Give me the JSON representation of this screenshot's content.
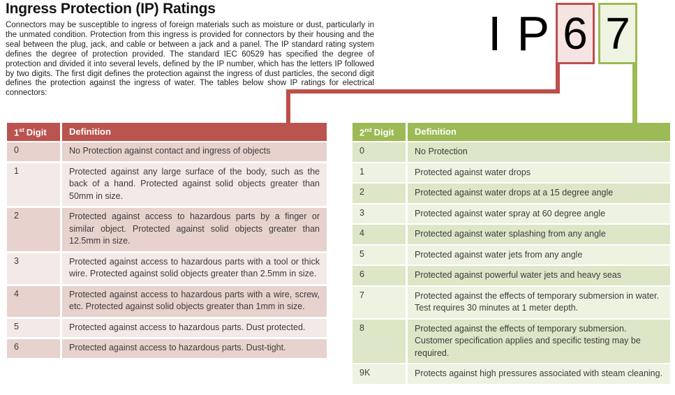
{
  "page": {
    "title": "Ingress Protection (IP) Ratings",
    "intro": "Connectors may be susceptible to ingress of foreign materials such as moisture or dust, particularly in the unmated condition. Protection from this ingress is provided for connectors by their housing and the seal between the plug, jack, and cable or between a jack and a panel. The IP standard rating system defines the degree of protection provided. The standard IEC 60529 has specified the degree of protection and divided it into several levels, defined by the IP number, which has the letters IP followed by two digits. The first digit defines the protection against the ingress of dust particles, the second digit defines the protection against the ingress of water. The tables below show IP ratings for electrical connectors:"
  },
  "ip_graphic": {
    "letters": "IP",
    "first_digit": "6",
    "second_digit": "7"
  },
  "colors": {
    "red_accent": "#bb534f",
    "red_row_dark": "#e7d2ce",
    "red_row_light": "#f3e9e6",
    "red_box_fill": "#f6e4e2",
    "green_accent": "#9cba55",
    "green_row_dark": "#dde6c7",
    "green_row_light": "#eef2e0",
    "green_box_fill": "#eff3e1"
  },
  "left_table": {
    "header": {
      "num": "1",
      "ordinal": "st",
      "rest": "Digit",
      "definition": "Definition"
    },
    "rows": [
      {
        "digit": "0",
        "definition": "No Protection against contact and ingress of objects"
      },
      {
        "digit": "1",
        "definition": "Protected against any large surface of the body, such as the back of a hand. Protected against solid objects greater than 50mm in size."
      },
      {
        "digit": "2",
        "definition": "Protected against access to hazardous parts by a finger or similar object. Protected against solid objects greater than 12.5mm in size."
      },
      {
        "digit": "3",
        "definition": "Protected against access to hazardous parts with a tool or thick wire. Protected against solid objects greater than 2.5mm in size."
      },
      {
        "digit": "4",
        "definition": "Protected against access to hazardous parts with a wire, screw, etc. Protected against solid objects greater than 1mm in size."
      },
      {
        "digit": "5",
        "definition": "Protected against access to hazardous parts. Dust protected."
      },
      {
        "digit": "6",
        "definition": "Protected against access to hazardous parts. Dust-tight."
      }
    ]
  },
  "right_table": {
    "header": {
      "num": "2",
      "ordinal": "nd",
      "rest": "Digit",
      "definition": "Definition"
    },
    "rows": [
      {
        "digit": "0",
        "definition": "No Protection"
      },
      {
        "digit": "1",
        "definition": "Protected against water drops"
      },
      {
        "digit": "2",
        "definition": "Protected against water drops at a 15 degree angle"
      },
      {
        "digit": "3",
        "definition": "Protected against water spray at 60 degree angle"
      },
      {
        "digit": "4",
        "definition": "Protected against water splashing from any angle"
      },
      {
        "digit": "5",
        "definition": "Protected against water jets from any angle"
      },
      {
        "digit": "6",
        "definition": "Protected against powerful water jets and heavy seas"
      },
      {
        "digit": "7",
        "definition": "Protected against the effects of temporary submersion in water. Test requires 30 minutes at 1 meter depth."
      },
      {
        "digit": "8",
        "definition": "Protected against the effects of temporary submersion. Customer specification applies and specific testing may be required."
      },
      {
        "digit": "9K",
        "definition": "Protects against high pressures associated with steam cleaning."
      }
    ]
  }
}
